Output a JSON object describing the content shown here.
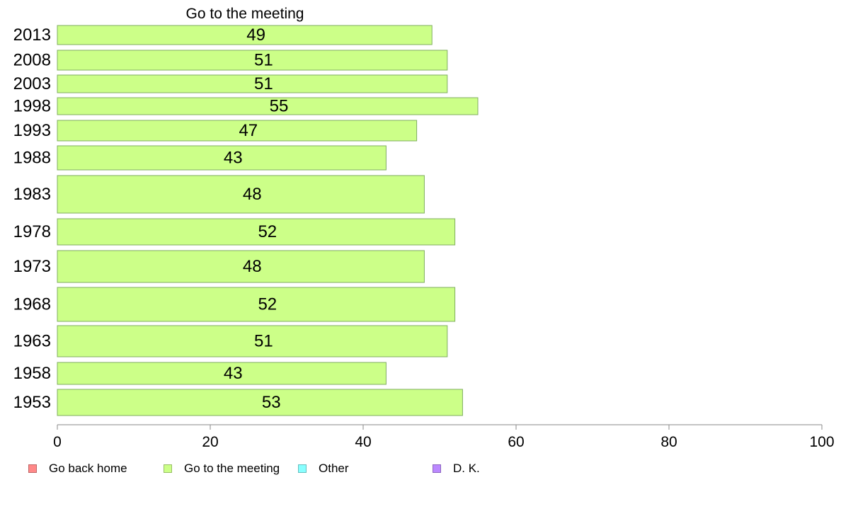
{
  "chart_data": {
    "type": "bar",
    "orientation": "horizontal",
    "title": "Go to the meeting",
    "categories": [
      "2013",
      "2008",
      "2003",
      "1998",
      "1993",
      "1988",
      "1983",
      "1978",
      "1973",
      "1968",
      "1963",
      "1958",
      "1953"
    ],
    "series": [
      {
        "name": "Go to the meeting",
        "color": "#ccff88",
        "values": [
          49,
          51,
          51,
          55,
          47,
          43,
          48,
          52,
          48,
          52,
          51,
          43,
          53
        ],
        "data_labels": [
          "49",
          "51",
          "51",
          "55",
          "47",
          "43",
          "48",
          "52",
          "48",
          "52",
          "51",
          "43",
          "53"
        ]
      }
    ],
    "xlim": [
      0,
      100
    ],
    "xticks": [
      "0",
      "20",
      "40",
      "60",
      "80",
      "100"
    ],
    "grid": false,
    "legend_position": "bottom"
  },
  "legend": {
    "items": [
      {
        "label": "Go back home",
        "color": "#ff8888"
      },
      {
        "label": "Go to the meeting",
        "color": "#ccff88"
      },
      {
        "label": "Other",
        "color": "#88ffff"
      },
      {
        "label": "D. K.",
        "color": "#bb88ff"
      }
    ]
  }
}
